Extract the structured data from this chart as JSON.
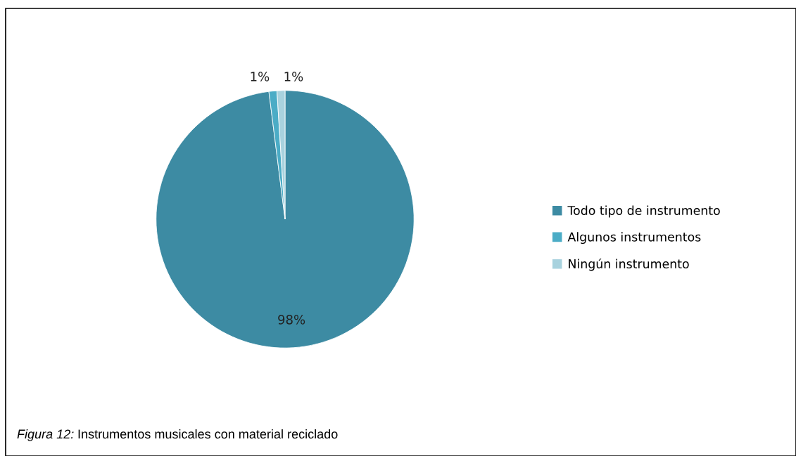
{
  "chart_data": {
    "type": "pie",
    "categories": [
      "Todo tipo de instrumento",
      "Algunos instrumentos",
      "Ningún instrumento"
    ],
    "values": [
      98,
      1,
      1
    ],
    "colors": [
      "#3d8ba3",
      "#4bacc6",
      "#a8d2de"
    ],
    "value_labels": [
      "98%",
      "1%",
      "1%"
    ],
    "legend": "right",
    "annotations": [
      "Figura 12:",
      "Instrumentos musicales con material reciclado"
    ]
  }
}
